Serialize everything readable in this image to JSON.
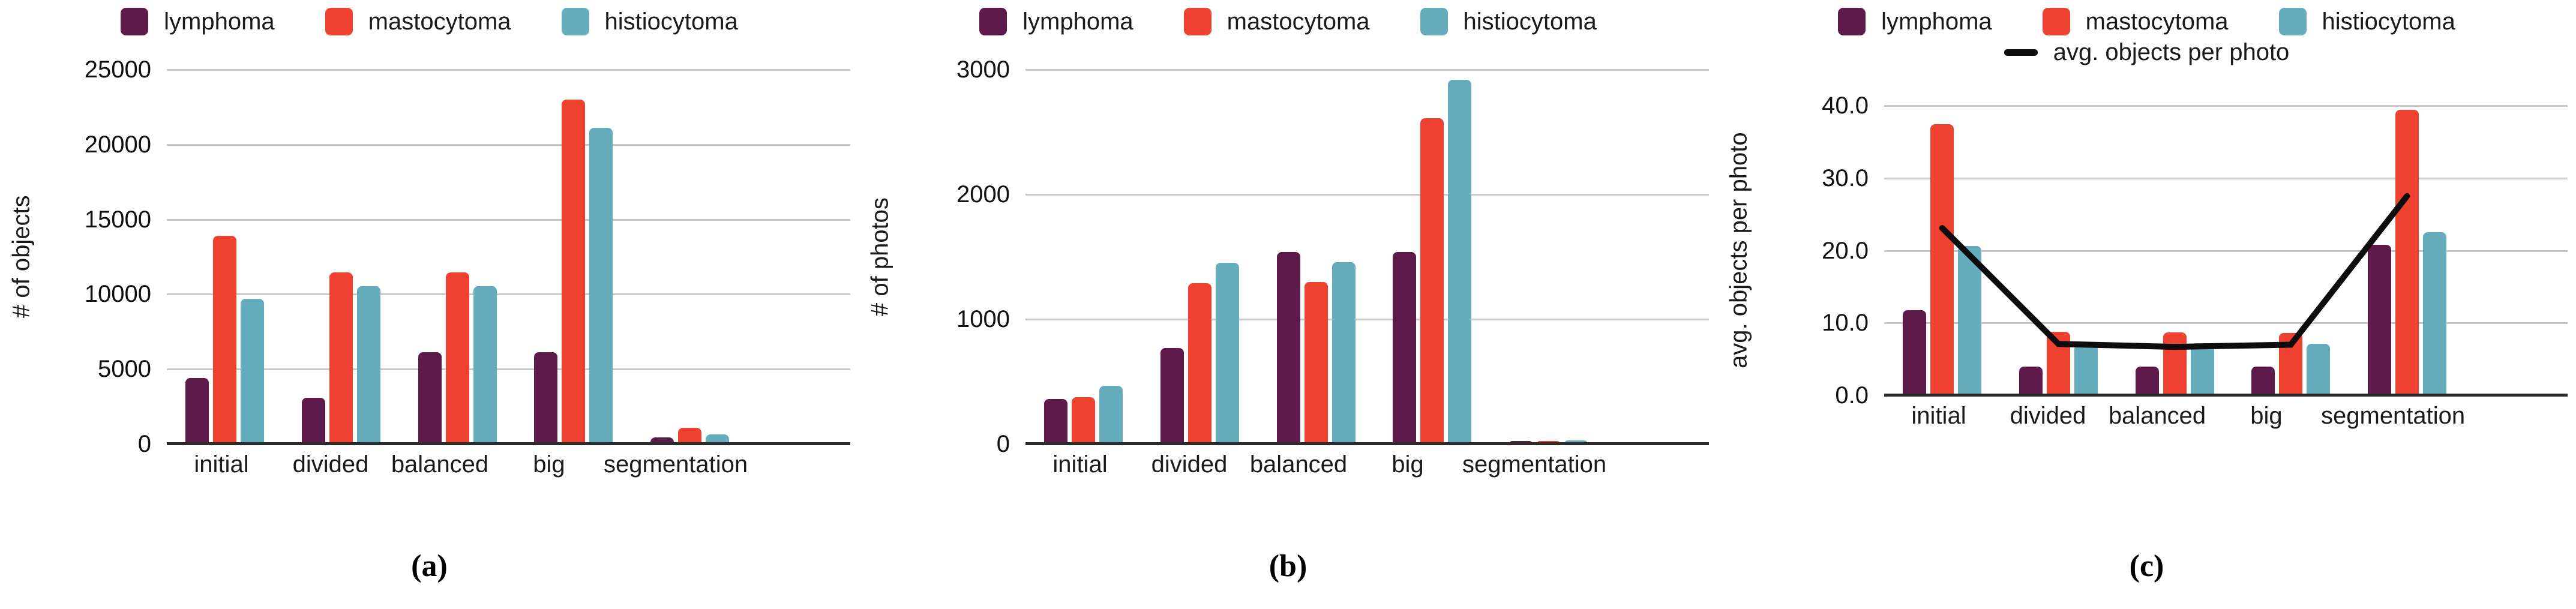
{
  "colors": {
    "lymphoma": "#5E1A4B",
    "mastocytoma": "#EE4130",
    "histiocytoma": "#65ADBC",
    "avg_line": "#0D0D0D",
    "gridline": "#C9C9C9",
    "axis": "#2B2B2B",
    "text": "#1A1A1A",
    "background": "#FFFFFF"
  },
  "captions": {
    "a": "(a)",
    "b": "(b)",
    "c": "(c)"
  },
  "chart_data": [
    {
      "id": "a",
      "type": "bar",
      "caption": "(a)",
      "ylabel": "# of objects",
      "ylim": [
        0,
        25000
      ],
      "ytick_labels": [
        "25000",
        "20000",
        "15000",
        "10000",
        "5000",
        "0"
      ],
      "grid": true,
      "legend_position": "top",
      "categories": [
        "initial",
        "divided",
        "balanced",
        "big",
        "segmentation"
      ],
      "series": [
        {
          "name": "lymphoma",
          "color": "#5E1A4B",
          "values": [
            4400,
            3100,
            6150,
            6150,
            450
          ]
        },
        {
          "name": "mastocytoma",
          "color": "#EE4130",
          "values": [
            13900,
            11450,
            11450,
            23000,
            1080
          ]
        },
        {
          "name": "histiocytoma",
          "color": "#65ADBC",
          "values": [
            9700,
            10550,
            10550,
            21100,
            660
          ]
        }
      ]
    },
    {
      "id": "b",
      "type": "bar",
      "caption": "(b)",
      "ylabel": "# of photos",
      "ylim": [
        0,
        3000
      ],
      "ytick_labels": [
        "3000",
        "2000",
        "1000",
        "0"
      ],
      "grid": true,
      "legend_position": "top",
      "categories": [
        "initial",
        "divided",
        "balanced",
        "big",
        "segmentation"
      ],
      "series": [
        {
          "name": "lymphoma",
          "color": "#5E1A4B",
          "values": [
            360,
            770,
            1540,
            1540,
            25
          ]
        },
        {
          "name": "mastocytoma",
          "color": "#EE4130",
          "values": [
            375,
            1290,
            1300,
            2610,
            25
          ]
        },
        {
          "name": "histiocytoma",
          "color": "#65ADBC",
          "values": [
            465,
            1450,
            1455,
            2920,
            30
          ]
        }
      ]
    },
    {
      "id": "c",
      "type": "bar+line",
      "caption": "(c)",
      "ylabel": "avg. objects per photo",
      "ylim": [
        0,
        40
      ],
      "ytick_labels": [
        "40.0",
        "30.0",
        "20.0",
        "10.0",
        "0.0"
      ],
      "grid": true,
      "legend_position": "top",
      "categories": [
        "initial",
        "divided",
        "balanced",
        "big",
        "segmentation"
      ],
      "series": [
        {
          "name": "lymphoma",
          "color": "#5E1A4B",
          "values": [
            11.8,
            4.0,
            4.0,
            4.0,
            20.8
          ]
        },
        {
          "name": "mastocytoma",
          "color": "#EE4130",
          "values": [
            37.4,
            8.8,
            8.7,
            8.6,
            39.4
          ]
        },
        {
          "name": "histiocytoma",
          "color": "#65ADBC",
          "values": [
            20.6,
            7.0,
            7.2,
            7.1,
            22.5
          ]
        }
      ],
      "line_series": {
        "name": "avg. objects per photo",
        "color": "#0D0D0D",
        "values": [
          23.1,
          7.1,
          6.7,
          7.0,
          27.5
        ]
      }
    }
  ]
}
